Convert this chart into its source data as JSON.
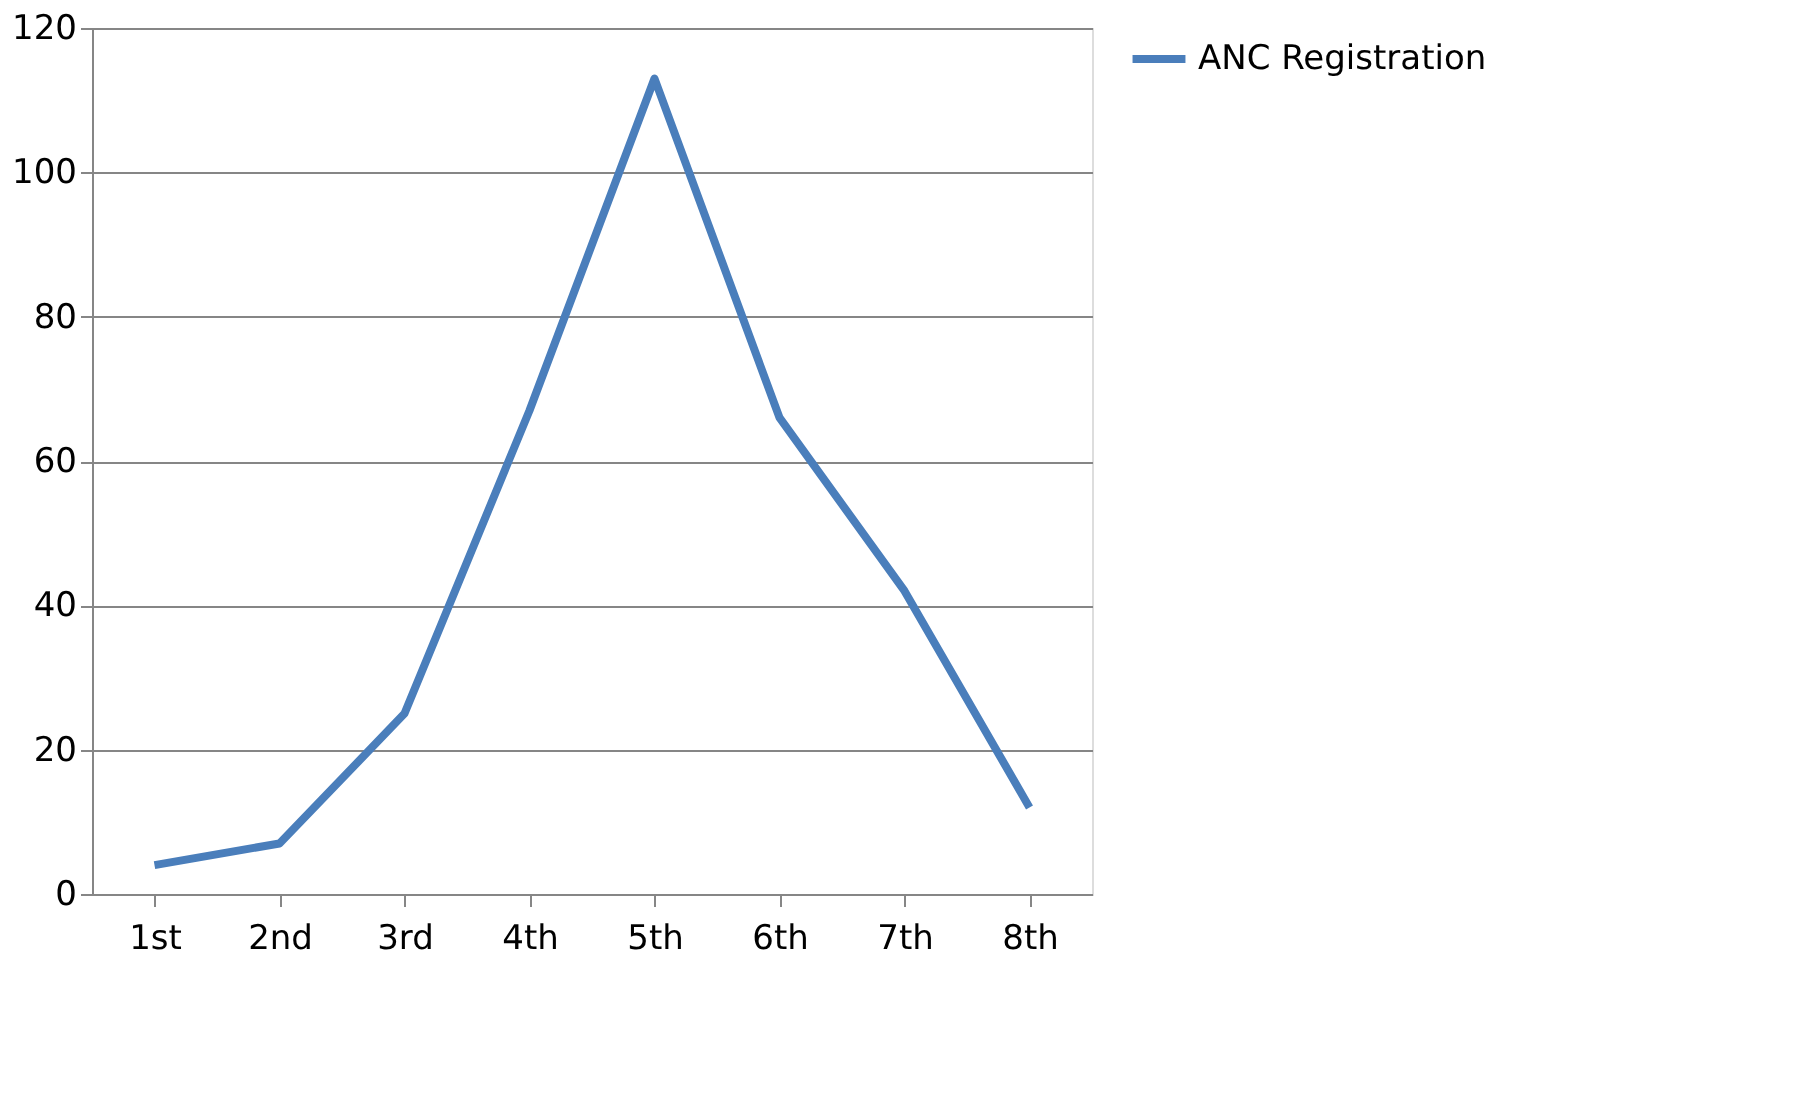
{
  "chart_data": {
    "type": "line",
    "categories": [
      "1st",
      "2nd",
      "3rd",
      "4th",
      "5th",
      "6th",
      "7th",
      "8th"
    ],
    "series": [
      {
        "name": "ANC Registration",
        "color": "#4a7ebb",
        "values": [
          4,
          7,
          25,
          67,
          113,
          66,
          42,
          12
        ]
      }
    ],
    "ylim": [
      0,
      120
    ],
    "yticks": [
      0,
      20,
      40,
      60,
      80,
      100,
      120
    ],
    "grid": "y",
    "legend": "right",
    "marker": "none",
    "line_style": "solid"
  }
}
